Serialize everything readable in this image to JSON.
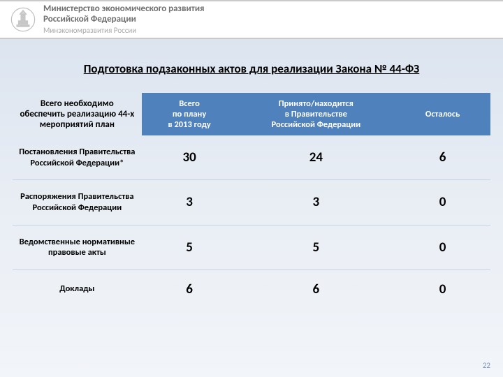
{
  "header": {
    "line1": "Министерство экономического развития",
    "line2": "Российской Федерации",
    "line3": "Минэкономразвития России"
  },
  "title": "Подготовка подзаконных актов для реализации Закона № 44-ФЗ",
  "table": {
    "columns": [
      "Всего необходимо обеспечить реализацию 44-х мероприятий план",
      "Всего\nпо плану\nв 2013 году",
      "Принято/находится\nв Правительстве\nРоссийской Федерации",
      "Осталось"
    ],
    "rows": [
      {
        "label": "Постановления Правительства Российской Федерации*",
        "plan": "30",
        "accepted": "24",
        "remaining": "6"
      },
      {
        "label": "Распоряжения Правительства Российской Федерации",
        "plan": "3",
        "accepted": "3",
        "remaining": "0"
      },
      {
        "label": "Ведомственные нормативные правовые акты",
        "plan": "5",
        "accepted": "5",
        "remaining": "0"
      },
      {
        "label": "Доклады",
        "plan": "6",
        "accepted": "6",
        "remaining": "0"
      }
    ],
    "header_bg": "#4f81bd",
    "header_text_color": "#ffffff",
    "row_border_color": "#c8d4e3"
  },
  "page_number": "22"
}
